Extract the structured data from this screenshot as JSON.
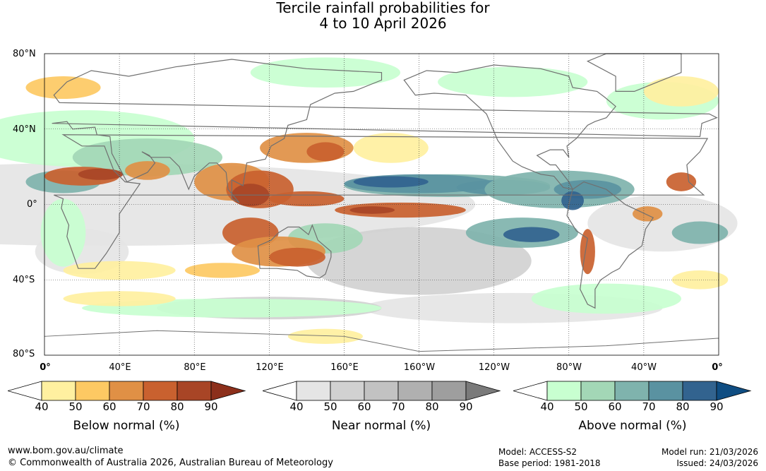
{
  "title": {
    "line1": "Tercile rainfall probabilities for",
    "line2": "4 to 10 April 2026"
  },
  "map": {
    "lat_labels": [
      "80°N",
      "40°N",
      "0°",
      "40°S",
      "80°S"
    ],
    "lon_labels": [
      "0°",
      "40°E",
      "80°E",
      "120°E",
      "160°E",
      "160°W",
      "120°W",
      "80°W",
      "40°W",
      "0°"
    ],
    "colors": {
      "below": [
        "#fff0a0",
        "#fdc963",
        "#e09045",
        "#c9612f",
        "#a84526",
        "#8c2f1b"
      ],
      "near": [
        "#e5e5e5",
        "#d1d1d1",
        "#c2c2c2",
        "#b0b0b0",
        "#9e9e9e",
        "#7a7a7a"
      ],
      "above": [
        "#c8ffd0",
        "#a3d7b6",
        "#7fb3ad",
        "#5a92a1",
        "#32638f",
        "#0f4d82"
      ],
      "land_outline": "#707070"
    }
  },
  "legend": {
    "below": {
      "title": "Below normal (%)",
      "ticks": [
        "40",
        "50",
        "60",
        "70",
        "80",
        "90"
      ]
    },
    "near": {
      "title": "Near normal (%)",
      "ticks": [
        "40",
        "50",
        "60",
        "70",
        "80",
        "90"
      ]
    },
    "above": {
      "title": "Above normal (%)",
      "ticks": [
        "40",
        "50",
        "60",
        "70",
        "80",
        "90"
      ]
    }
  },
  "footer": {
    "website": "www.bom.gov.au/climate",
    "copyright": "© Commonwealth of Australia 2026, Australian Bureau of Meteorology",
    "model": "Model: ACCESS-S2",
    "base_period": "Base period: 1981-2018",
    "model_run": "Model run: 21/03/2026",
    "issued": "Issued: 24/03/2026"
  }
}
